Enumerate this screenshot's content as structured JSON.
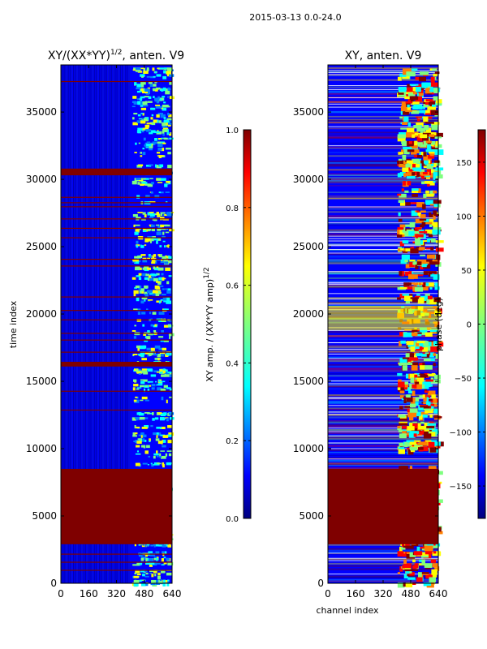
{
  "figure": {
    "suptitle": "2015-03-13 0.0-24.0"
  },
  "colors": {
    "jet": [
      "#00007f",
      "#0000ff",
      "#007fff",
      "#00ffff",
      "#7fff7f",
      "#ffff00",
      "#ff7f00",
      "#ff0000",
      "#7f0000"
    ],
    "flag": "#7f0000",
    "axes_edge": "#000000"
  },
  "chart_data": [
    {
      "type": "heatmap",
      "name": "amplitude-ratio",
      "title_main": "XY/(XX*YY)",
      "title_sup": "1/2",
      "title_tail": ", anten. V9",
      "xlabel": "",
      "ylabel": "time index",
      "xlim": [
        0,
        640
      ],
      "ylim": [
        0,
        38500
      ],
      "xticks": [
        0,
        160,
        320,
        480,
        640
      ],
      "yticks": [
        0,
        5000,
        10000,
        15000,
        20000,
        25000,
        30000,
        35000
      ],
      "flagged_time_bands": [
        [
          2900,
          8500
        ],
        [
          16100,
          16450
        ],
        [
          30300,
          30800
        ]
      ],
      "flagged_time_lines": [
        1000,
        1600,
        2200,
        12900,
        14300,
        17200,
        18100,
        18600,
        19600,
        20300,
        21300,
        23600,
        24100,
        25700,
        26400,
        27100,
        28000,
        28300,
        28700,
        37300
      ],
      "active_channel_band": [
        410,
        640
      ],
      "colorbar": {
        "label_main": "XY amp. / (XX*YY amp)",
        "label_sup": "1/2",
        "range": [
          0.0,
          1.0
        ],
        "ticks": [
          "0.0",
          "0.2",
          "0.4",
          "0.6",
          "0.8",
          "1.0"
        ],
        "tick_values": [
          0.0,
          0.2,
          0.4,
          0.6,
          0.8,
          1.0
        ]
      }
    },
    {
      "type": "heatmap",
      "name": "phase",
      "title": "XY, anten. V9",
      "xlabel": "channel index",
      "ylabel": "",
      "xlim": [
        0,
        640
      ],
      "ylim": [
        0,
        38500
      ],
      "xticks": [
        0,
        160,
        320,
        480,
        640
      ],
      "yticks": [
        0,
        5000,
        10000,
        15000,
        20000,
        25000,
        30000,
        35000
      ],
      "flagged_time_bands": [
        [
          2900,
          8500
        ]
      ],
      "active_channel_band": [
        400,
        640
      ],
      "colorbar": {
        "label": "phase (deg)",
        "range": [
          -180,
          180
        ],
        "ticks": [
          "−150",
          "−100",
          "−50",
          "0",
          "50",
          "100",
          "150"
        ],
        "tick_values": [
          -150,
          -100,
          -50,
          0,
          50,
          100,
          150
        ]
      }
    }
  ]
}
